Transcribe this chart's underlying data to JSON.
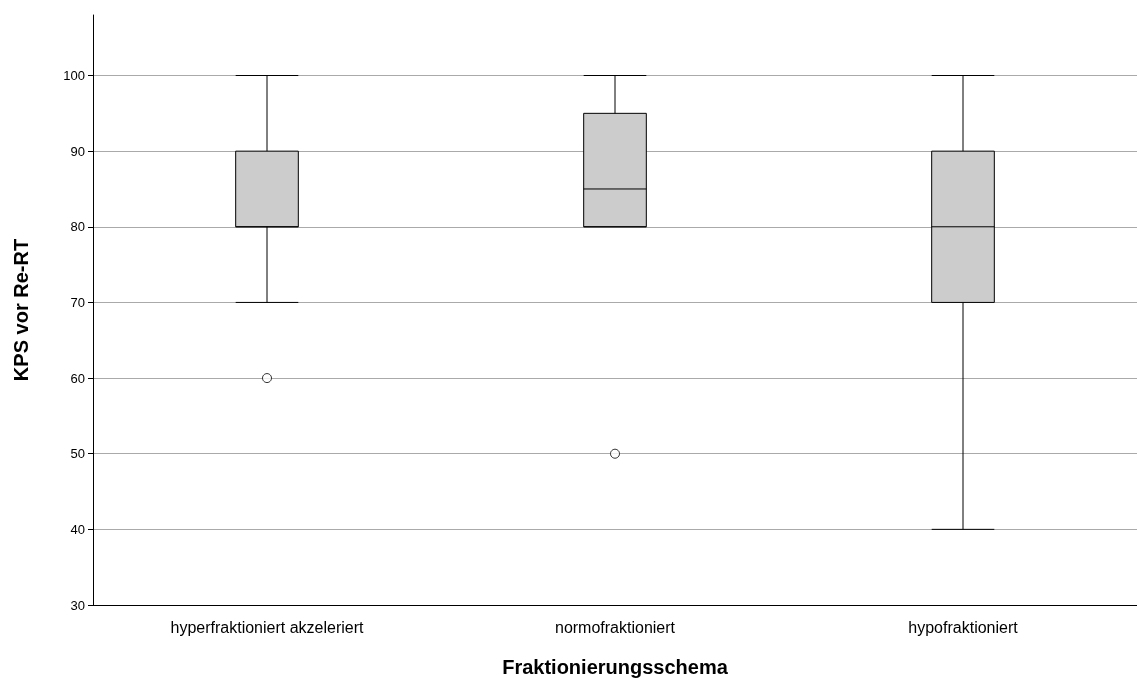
{
  "chart_data": {
    "type": "box",
    "xlabel": "Fraktionierungsschema",
    "ylabel": "KPS vor Re-RT",
    "categories": [
      "hyperfraktioniert akzeleriert",
      "normofraktioniert",
      "hypofraktioniert"
    ],
    "boxes": [
      {
        "low": 70,
        "q1": 80,
        "median": 80,
        "q3": 90,
        "high": 100,
        "outliers": [
          60
        ]
      },
      {
        "low": 80,
        "q1": 80,
        "median": 85,
        "q3": 95,
        "high": 100,
        "outliers": [
          50
        ]
      },
      {
        "low": 40,
        "q1": 70,
        "median": 80,
        "q3": 90,
        "high": 100
      }
    ],
    "color": "#cccccc",
    "ylim": [
      30,
      108
    ],
    "yticks": [
      30,
      40,
      50,
      60,
      70,
      80,
      90,
      100
    ],
    "grid": "y"
  }
}
